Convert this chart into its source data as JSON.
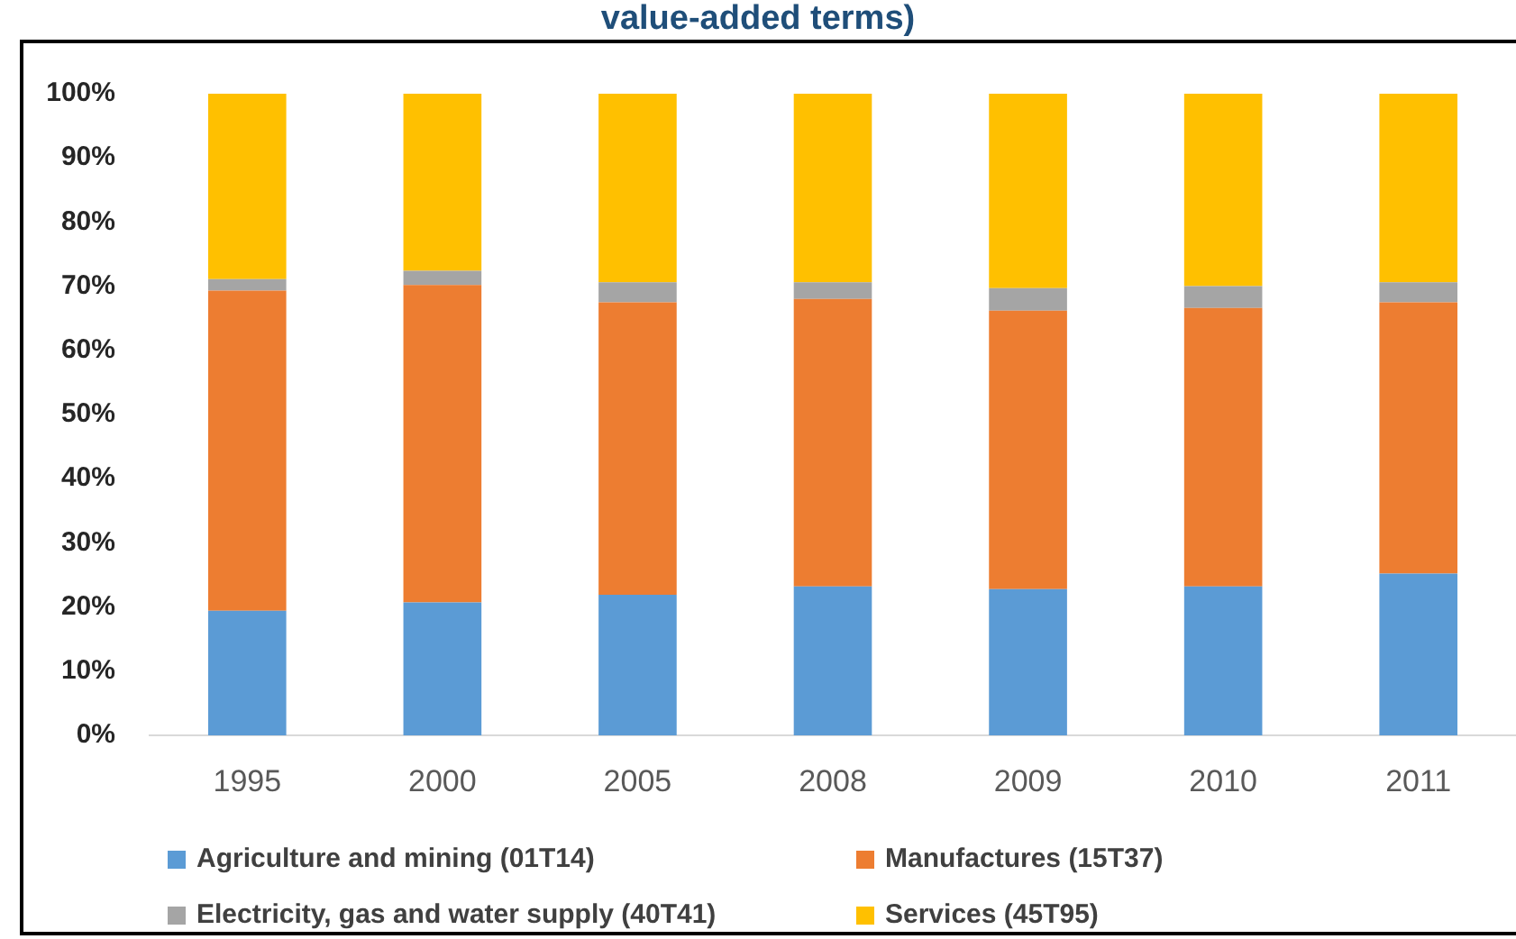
{
  "chart_data": {
    "type": "bar",
    "title": "value-added terms)",
    "categories": [
      "1995",
      "2000",
      "2005",
      "2008",
      "2009",
      "2010",
      "2011"
    ],
    "series": [
      {
        "name": "Agriculture and mining (01T14)",
        "color": "#5b9bd5",
        "values": [
          19.4,
          20.7,
          21.9,
          23.2,
          22.8,
          23.2,
          25.2
        ]
      },
      {
        "name": "Manufactures (15T37)",
        "color": "#ed7d31",
        "values": [
          49.9,
          49.5,
          45.6,
          44.8,
          43.4,
          43.4,
          42.3
        ]
      },
      {
        "name": "Electricity, gas and water supply (40T41)",
        "color": "#a5a5a5",
        "values": [
          1.8,
          2.2,
          3.1,
          2.6,
          3.5,
          3.4,
          3.1
        ]
      },
      {
        "name": "Services (45T95)",
        "color": "#ffc000",
        "values": [
          28.9,
          27.6,
          29.4,
          29.4,
          30.3,
          30.0,
          29.4
        ]
      }
    ],
    "stacked": true,
    "ylim": [
      0,
      100
    ],
    "yticks": [
      {
        "value": 0,
        "label": "0%"
      },
      {
        "value": 10,
        "label": "10%"
      },
      {
        "value": 20,
        "label": "20%"
      },
      {
        "value": 30,
        "label": "30%"
      },
      {
        "value": 40,
        "label": "40%"
      },
      {
        "value": 50,
        "label": "50%"
      },
      {
        "value": 60,
        "label": "60%"
      },
      {
        "value": 70,
        "label": "70%"
      },
      {
        "value": 80,
        "label": "80%"
      },
      {
        "value": 90,
        "label": "90%"
      },
      {
        "value": 100,
        "label": "100%"
      }
    ],
    "grid": false,
    "legend": "bottom"
  }
}
